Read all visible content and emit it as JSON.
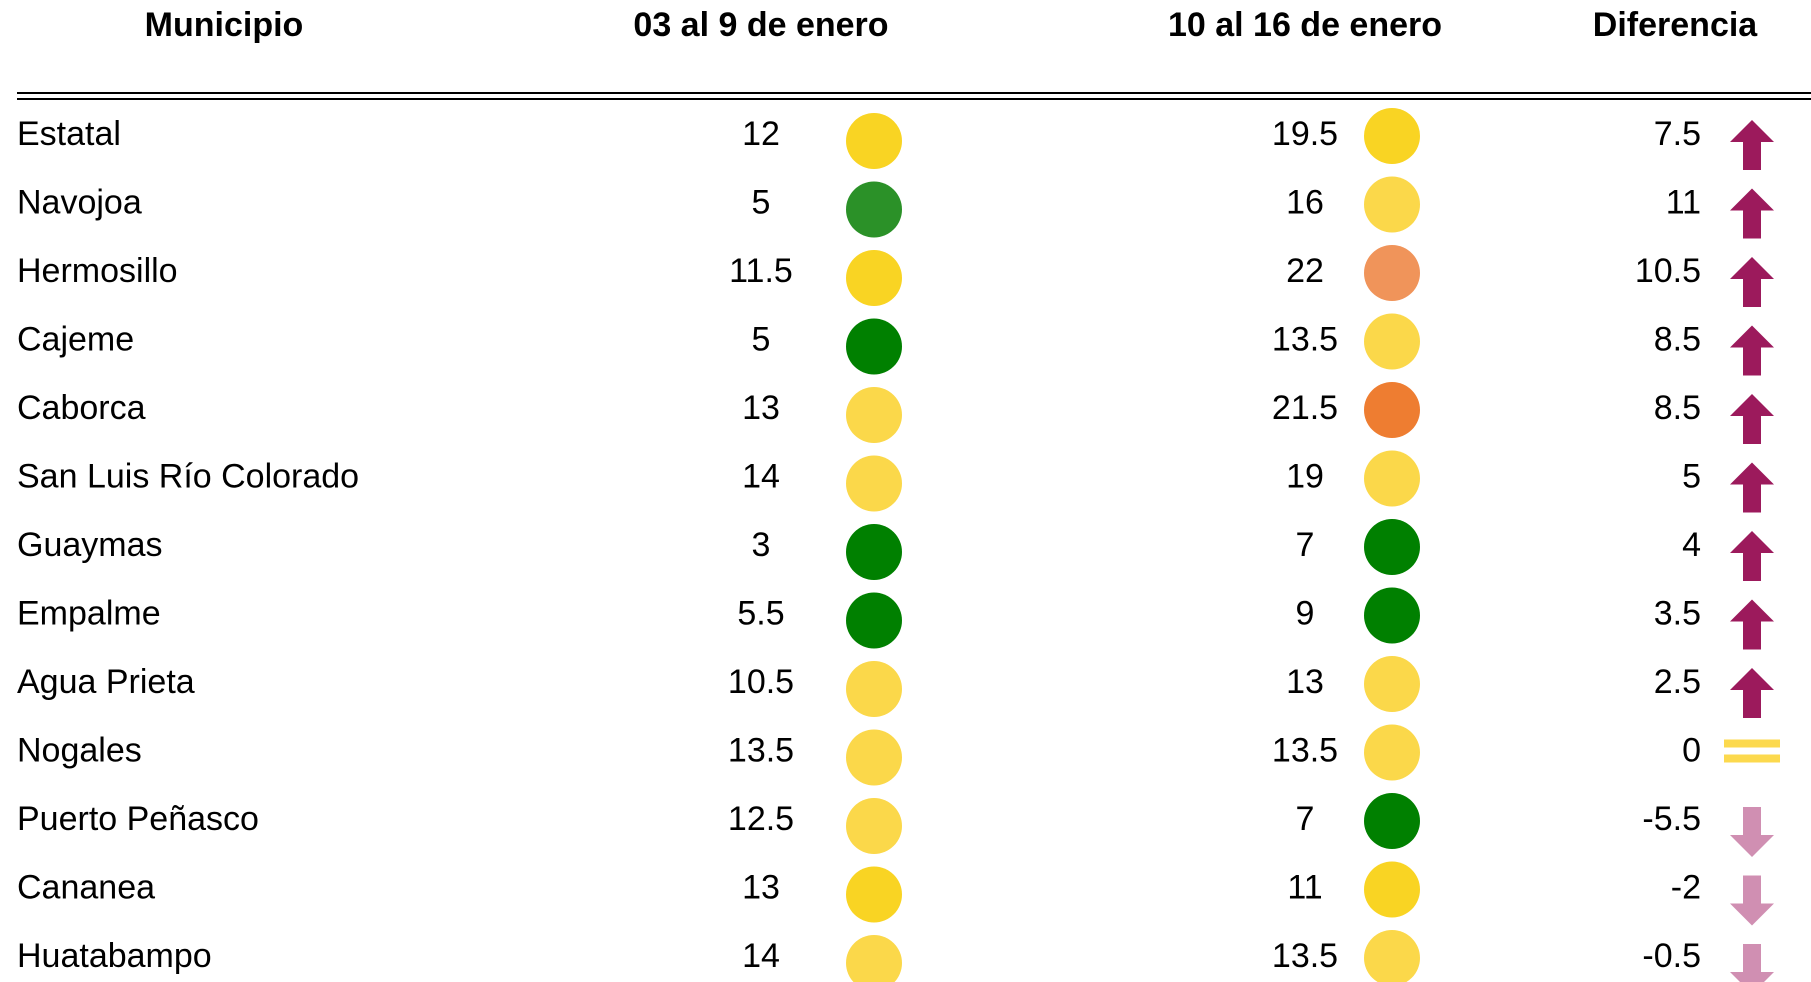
{
  "table": {
    "headers": [
      "Municipio",
      "03 al 9 de enero",
      "10 al 16 de enero",
      "Diferencia"
    ],
    "arrow_colors": {
      "up": "#9c1a5c",
      "down": "#d08fb2",
      "equal": "#fcd94e"
    },
    "rows": [
      {
        "municipio": "Estatal",
        "v1": 12,
        "color1": "#f9d423",
        "v2": 19.5,
        "color2": "#f9d423",
        "diff": 7.5
      },
      {
        "municipio": "Navojoa",
        "v1": 5,
        "color1": "#2b9128",
        "v2": 16,
        "color2": "#fbd84a",
        "diff": 11
      },
      {
        "municipio": "Hermosillo",
        "v1": 11.5,
        "color1": "#f9d423",
        "v2": 22,
        "color2": "#f0945a",
        "diff": 10.5
      },
      {
        "municipio": "Cajeme",
        "v1": 5,
        "color1": "#008000",
        "v2": 13.5,
        "color2": "#fbd84a",
        "diff": 8.5
      },
      {
        "municipio": "Caborca",
        "v1": 13,
        "color1": "#fbd84a",
        "v2": 21.5,
        "color2": "#ee7d31",
        "diff": 8.5
      },
      {
        "municipio": "San Luis Río Colorado",
        "v1": 14,
        "color1": "#fbd84a",
        "v2": 19,
        "color2": "#fbd84a",
        "diff": 5
      },
      {
        "municipio": "Guaymas",
        "v1": 3,
        "color1": "#008000",
        "v2": 7,
        "color2": "#008000",
        "diff": 4
      },
      {
        "municipio": "Empalme",
        "v1": 5.5,
        "color1": "#008000",
        "v2": 9,
        "color2": "#008000",
        "diff": 3.5
      },
      {
        "municipio": "Agua Prieta",
        "v1": 10.5,
        "color1": "#fbd84a",
        "v2": 13,
        "color2": "#fbd84a",
        "diff": 2.5
      },
      {
        "municipio": "Nogales",
        "v1": 13.5,
        "color1": "#fbd84a",
        "v2": 13.5,
        "color2": "#fbd84a",
        "diff": 0
      },
      {
        "municipio": "Puerto Peñasco",
        "v1": 12.5,
        "color1": "#fbd84a",
        "v2": 7,
        "color2": "#008000",
        "diff": -5.5
      },
      {
        "municipio": "Cananea",
        "v1": 13,
        "color1": "#f9d423",
        "v2": 11,
        "color2": "#f9d423",
        "diff": -2
      },
      {
        "municipio": "Huatabampo",
        "v1": 14,
        "color1": "#fbd84a",
        "v2": 13.5,
        "color2": "#fbd84a",
        "diff": -0.5
      }
    ]
  }
}
